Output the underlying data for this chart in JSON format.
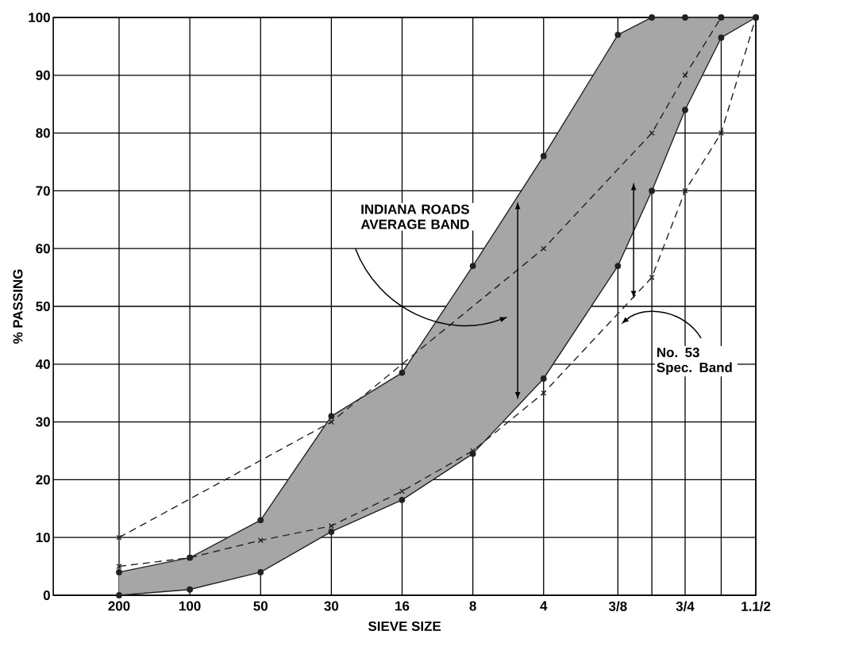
{
  "chart_data": {
    "type": "line",
    "xlabel": "SIEVE SIZE",
    "ylabel": "% PASSING",
    "annotations": [
      "INDIANA ROADS AVERAGE BAND",
      "No. 53 Spec. Band"
    ],
    "categories": [
      "200",
      "100",
      "50",
      "30",
      "16",
      "8",
      "4",
      "3/8",
      null,
      "3/4",
      null,
      "1.1/2"
    ],
    "ylim": [
      0,
      100
    ],
    "yticks": [
      0,
      10,
      20,
      30,
      40,
      50,
      60,
      70,
      80,
      90,
      100
    ],
    "grid": true,
    "series": [
      {
        "color": "#222222",
        "marker": "circle",
        "line_style": "solid",
        "values": [
          4,
          6.5,
          13,
          31,
          38.5,
          57,
          76,
          97,
          100,
          100,
          100,
          100
        ],
        "lower": [
          0,
          1,
          4,
          11,
          16.5,
          24.5,
          37.5,
          57,
          70,
          84,
          96.5,
          100
        ],
        "upper": [
          4,
          6.5,
          13,
          31,
          38.5,
          57,
          76,
          97,
          100,
          100,
          100,
          100
        ]
      },
      {
        "color": "#222222",
        "marker": "circle",
        "line_style": "solid",
        "values": [
          0,
          1,
          4,
          11,
          16.5,
          24.5,
          37.5,
          57,
          70,
          84,
          96.5,
          100
        ]
      },
      {
        "color": "#222222",
        "marker": "cross",
        "line_style": "dashed",
        "values": [
          10,
          null,
          null,
          30,
          null,
          null,
          60,
          null,
          80,
          90,
          100,
          null
        ]
      },
      {
        "color": "#222222",
        "marker": "cross",
        "line_style": "dashed",
        "values": [
          5,
          6.5,
          9.5,
          12,
          18,
          25,
          35,
          null,
          55,
          70,
          80,
          100
        ]
      }
    ]
  }
}
